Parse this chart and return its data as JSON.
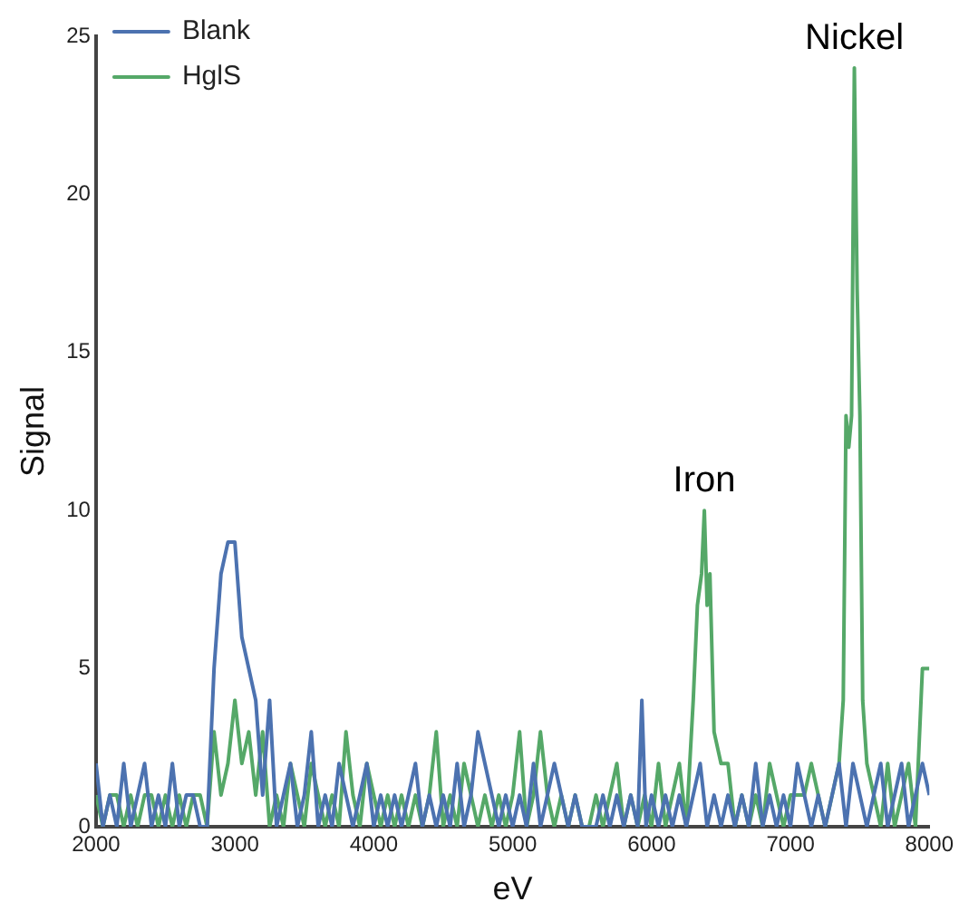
{
  "chart_data": {
    "type": "line",
    "xlabel": "eV",
    "ylabel": "Signal",
    "xlim": [
      2000,
      8000
    ],
    "xticks": [
      2000,
      3000,
      4000,
      5000,
      6000,
      7000,
      8000
    ],
    "ylim": [
      0,
      25
    ],
    "yticks": [
      0,
      5,
      10,
      15,
      20,
      25
    ],
    "grid": false,
    "legend": "top left",
    "marker": "none",
    "line_style": "solid",
    "annotations": [
      {
        "text": "Iron",
        "x": 6380,
        "y": 10
      },
      {
        "text": "Nickel",
        "x": 7460,
        "y": 24
      }
    ],
    "series": [
      {
        "name": "Blank",
        "color": "#4c72b0",
        "x": [
          2000,
          2050,
          2100,
          2150,
          2200,
          2250,
          2300,
          2350,
          2400,
          2450,
          2500,
          2550,
          2600,
          2650,
          2700,
          2750,
          2800,
          2850,
          2900,
          2950,
          3000,
          3050,
          3100,
          3150,
          3200,
          3250,
          3300,
          3350,
          3400,
          3450,
          3500,
          3550,
          3600,
          3650,
          3700,
          3750,
          3800,
          3850,
          3900,
          3950,
          4000,
          4050,
          4100,
          4150,
          4200,
          4250,
          4300,
          4350,
          4400,
          4450,
          4500,
          4550,
          4600,
          4650,
          4700,
          4750,
          4800,
          4850,
          4900,
          4950,
          5000,
          5050,
          5100,
          5150,
          5200,
          5250,
          5300,
          5350,
          5400,
          5450,
          5500,
          5550,
          5600,
          5650,
          5700,
          5750,
          5800,
          5850,
          5900,
          5930,
          5960,
          6000,
          6050,
          6100,
          6150,
          6200,
          6250,
          6300,
          6350,
          6400,
          6450,
          6500,
          6550,
          6600,
          6650,
          6700,
          6750,
          6800,
          6850,
          6900,
          6950,
          7000,
          7050,
          7100,
          7150,
          7200,
          7250,
          7300,
          7350,
          7400,
          7450,
          7500,
          7550,
          7600,
          7650,
          7700,
          7750,
          7800,
          7850,
          7900,
          7950,
          8000
        ],
        "values": [
          2,
          0,
          1,
          0,
          2,
          0,
          1,
          2,
          0,
          1,
          0,
          2,
          0,
          1,
          1,
          0,
          0,
          5,
          8,
          9,
          9,
          6,
          5,
          4,
          1,
          4,
          0,
          1,
          2,
          0,
          1,
          3,
          0,
          1,
          0,
          2,
          1,
          0,
          1,
          2,
          0,
          1,
          0,
          1,
          0,
          1,
          2,
          0,
          1,
          0,
          1,
          0,
          2,
          0,
          1,
          3,
          2,
          1,
          0,
          1,
          0,
          1,
          0,
          2,
          0,
          1,
          2,
          1,
          0,
          1,
          0,
          0,
          0,
          1,
          0,
          1,
          0,
          1,
          0,
          4,
          0,
          1,
          0,
          1,
          0,
          1,
          0,
          1,
          2,
          0,
          1,
          0,
          1,
          0,
          1,
          0,
          2,
          0,
          1,
          0,
          1,
          0,
          2,
          1,
          0,
          1,
          0,
          1,
          2,
          0,
          2,
          1,
          0,
          1,
          2,
          0,
          1,
          2,
          0,
          1,
          2,
          1
        ]
      },
      {
        "name": "HglS",
        "color": "#55a868",
        "x": [
          2000,
          2050,
          2100,
          2150,
          2200,
          2250,
          2300,
          2350,
          2400,
          2450,
          2500,
          2550,
          2600,
          2650,
          2700,
          2750,
          2800,
          2850,
          2900,
          2950,
          3000,
          3050,
          3100,
          3150,
          3200,
          3250,
          3300,
          3350,
          3400,
          3450,
          3500,
          3550,
          3600,
          3650,
          3700,
          3750,
          3800,
          3850,
          3900,
          3950,
          4000,
          4050,
          4100,
          4150,
          4200,
          4250,
          4300,
          4350,
          4400,
          4450,
          4500,
          4550,
          4600,
          4650,
          4700,
          4750,
          4800,
          4850,
          4900,
          4950,
          5000,
          5050,
          5100,
          5150,
          5200,
          5250,
          5300,
          5350,
          5400,
          5450,
          5500,
          5550,
          5600,
          5650,
          5700,
          5750,
          5800,
          5850,
          5900,
          5950,
          6000,
          6050,
          6100,
          6150,
          6200,
          6250,
          6300,
          6330,
          6360,
          6380,
          6400,
          6420,
          6450,
          6500,
          6550,
          6600,
          6650,
          6700,
          6750,
          6800,
          6850,
          6900,
          6950,
          7000,
          7050,
          7100,
          7150,
          7200,
          7250,
          7300,
          7350,
          7380,
          7400,
          7420,
          7440,
          7460,
          7480,
          7500,
          7520,
          7550,
          7600,
          7650,
          7700,
          7750,
          7800,
          7850,
          7900,
          7950,
          8000
        ],
        "values": [
          1,
          0,
          1,
          1,
          0,
          1,
          0,
          1,
          1,
          0,
          1,
          0,
          1,
          0,
          1,
          1,
          0,
          3,
          1,
          2,
          4,
          2,
          3,
          1,
          3,
          0,
          1,
          0,
          2,
          1,
          0,
          2,
          1,
          0,
          1,
          0,
          3,
          1,
          0,
          2,
          1,
          0,
          1,
          0,
          1,
          0,
          1,
          0,
          1,
          3,
          0,
          1,
          0,
          2,
          1,
          0,
          1,
          0,
          1,
          0,
          1,
          3,
          0,
          1,
          3,
          1,
          0,
          1,
          0,
          1,
          0,
          0,
          1,
          0,
          1,
          2,
          0,
          1,
          0,
          1,
          0,
          2,
          0,
          1,
          2,
          0,
          4,
          7,
          8,
          10,
          7,
          8,
          3,
          2,
          2,
          0,
          1,
          0,
          1,
          0,
          2,
          1,
          0,
          1,
          1,
          1,
          2,
          1,
          0,
          1,
          2,
          4,
          13,
          12,
          13,
          24,
          17,
          13,
          4,
          2,
          1,
          0,
          2,
          0,
          1,
          2,
          0,
          5,
          5
        ]
      }
    ]
  }
}
